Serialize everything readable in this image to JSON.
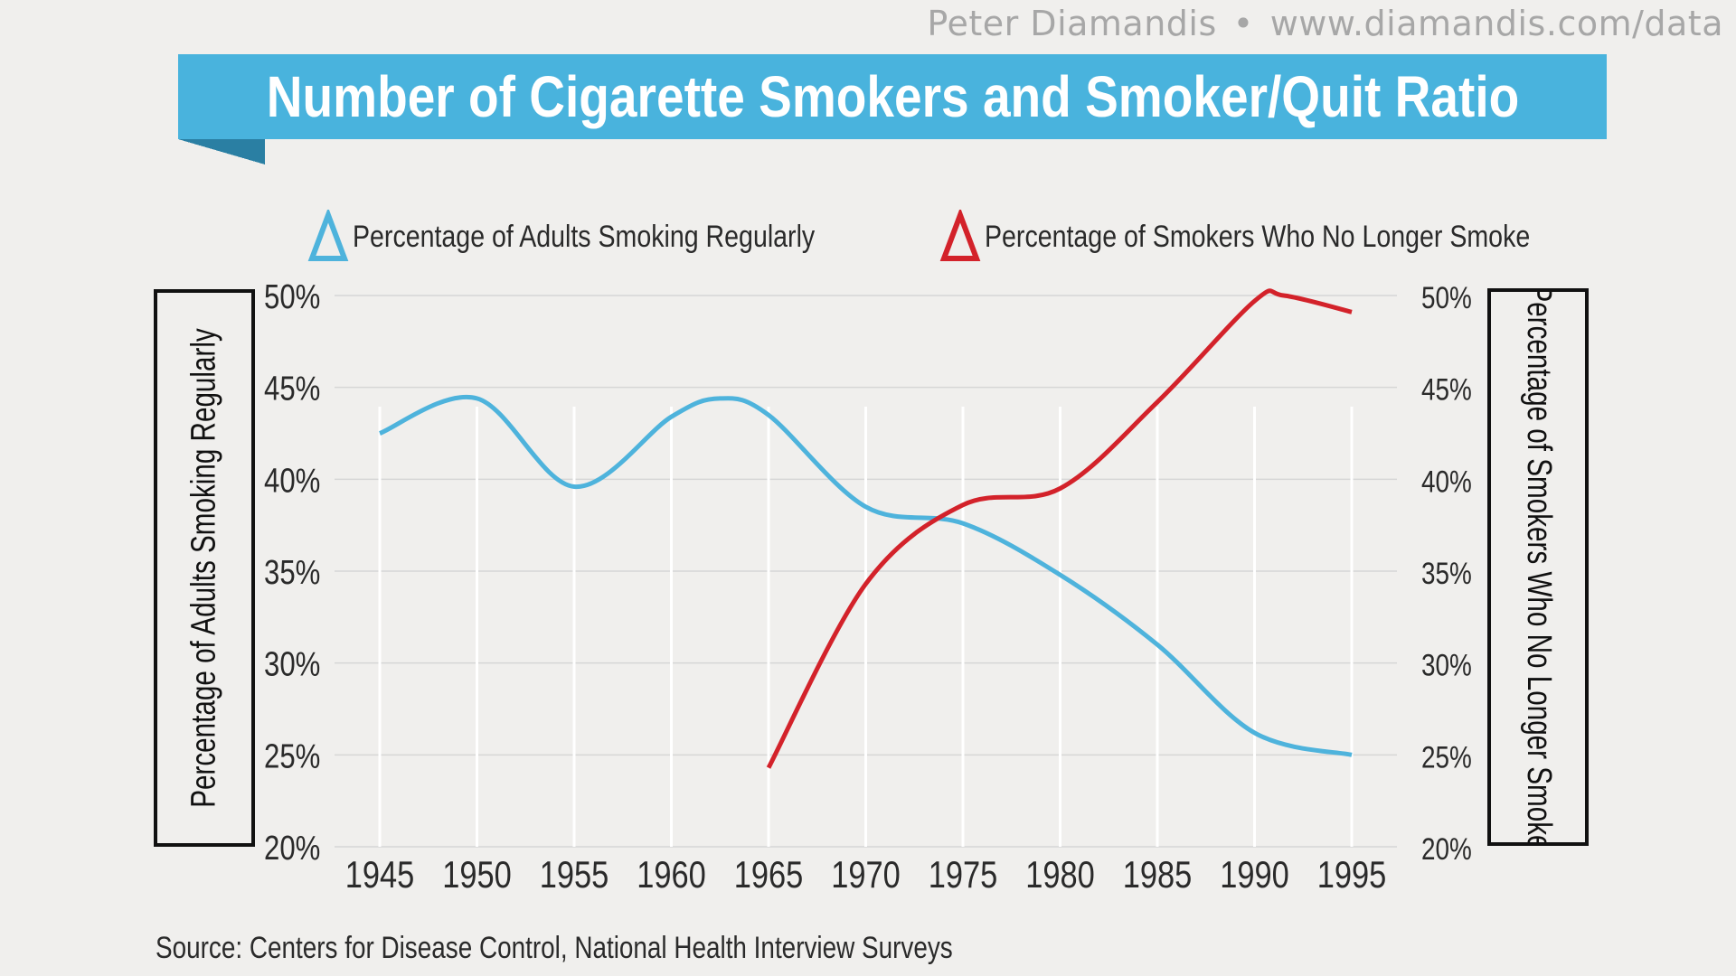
{
  "header": {
    "attribution_name": "Peter Diamandis",
    "attribution_sep": "•",
    "attribution_url": "www.diamandis.com/data",
    "title": "Number of Cigarette Smokers and Smoker/Quit Ratio"
  },
  "colors": {
    "background": "#f0efed",
    "banner": "#49b3dd",
    "banner_fold": "#2a7fa3",
    "adults_series": "#4eb3dc",
    "quit_series": "#d3222a",
    "grid": "#d6d6d6"
  },
  "footer": {
    "source": "Source: Centers for Disease Control, National Health Interview Surveys"
  },
  "chart_data": {
    "type": "line",
    "title": "Number of Cigarette Smokers and Smoker/Quit Ratio",
    "xlabel": "",
    "ylabel": "Percentage of Adults Smoking Regularly",
    "y2label": "Percentage of Smokers Who No Longer Smoke",
    "x_ticks": [
      "1945",
      "1950",
      "1955",
      "1960",
      "1965",
      "1970",
      "1975",
      "1980",
      "1985",
      "1990",
      "1995"
    ],
    "y_ticks": [
      "50%",
      "45%",
      "40%",
      "35%",
      "30%",
      "25%",
      "20%"
    ],
    "y2_ticks": [
      "50%",
      "45%",
      "40%",
      "35%",
      "30%",
      "25%",
      "20%"
    ],
    "xlim": [
      1945,
      1995
    ],
    "ylim": [
      20,
      50
    ],
    "y2lim": [
      20,
      50
    ],
    "grid": true,
    "legend_position": "top",
    "series": [
      {
        "name": "Percentage of Adults Smoking Regularly",
        "color": "#4eb3dc",
        "axis": "left",
        "points": [
          [
            1945,
            42.5
          ],
          [
            1950,
            44.4
          ],
          [
            1955,
            39.6
          ],
          [
            1960,
            43.4
          ],
          [
            1962.5,
            44.4
          ],
          [
            1965,
            43.5
          ],
          [
            1970,
            38.5
          ],
          [
            1975,
            37.6
          ],
          [
            1980,
            34.8
          ],
          [
            1985,
            31.0
          ],
          [
            1990,
            26.2
          ],
          [
            1995,
            25.0
          ]
        ]
      },
      {
        "name": "Percentage of Smokers Who No Longer Smoke",
        "color": "#d3222a",
        "axis": "right",
        "points": [
          [
            1965,
            24.3
          ],
          [
            1970,
            34.3
          ],
          [
            1975,
            38.6
          ],
          [
            1980,
            39.5
          ],
          [
            1985,
            44.2
          ],
          [
            1990,
            49.7
          ],
          [
            1991.5,
            50.0
          ],
          [
            1995,
            49.1
          ]
        ]
      }
    ]
  }
}
